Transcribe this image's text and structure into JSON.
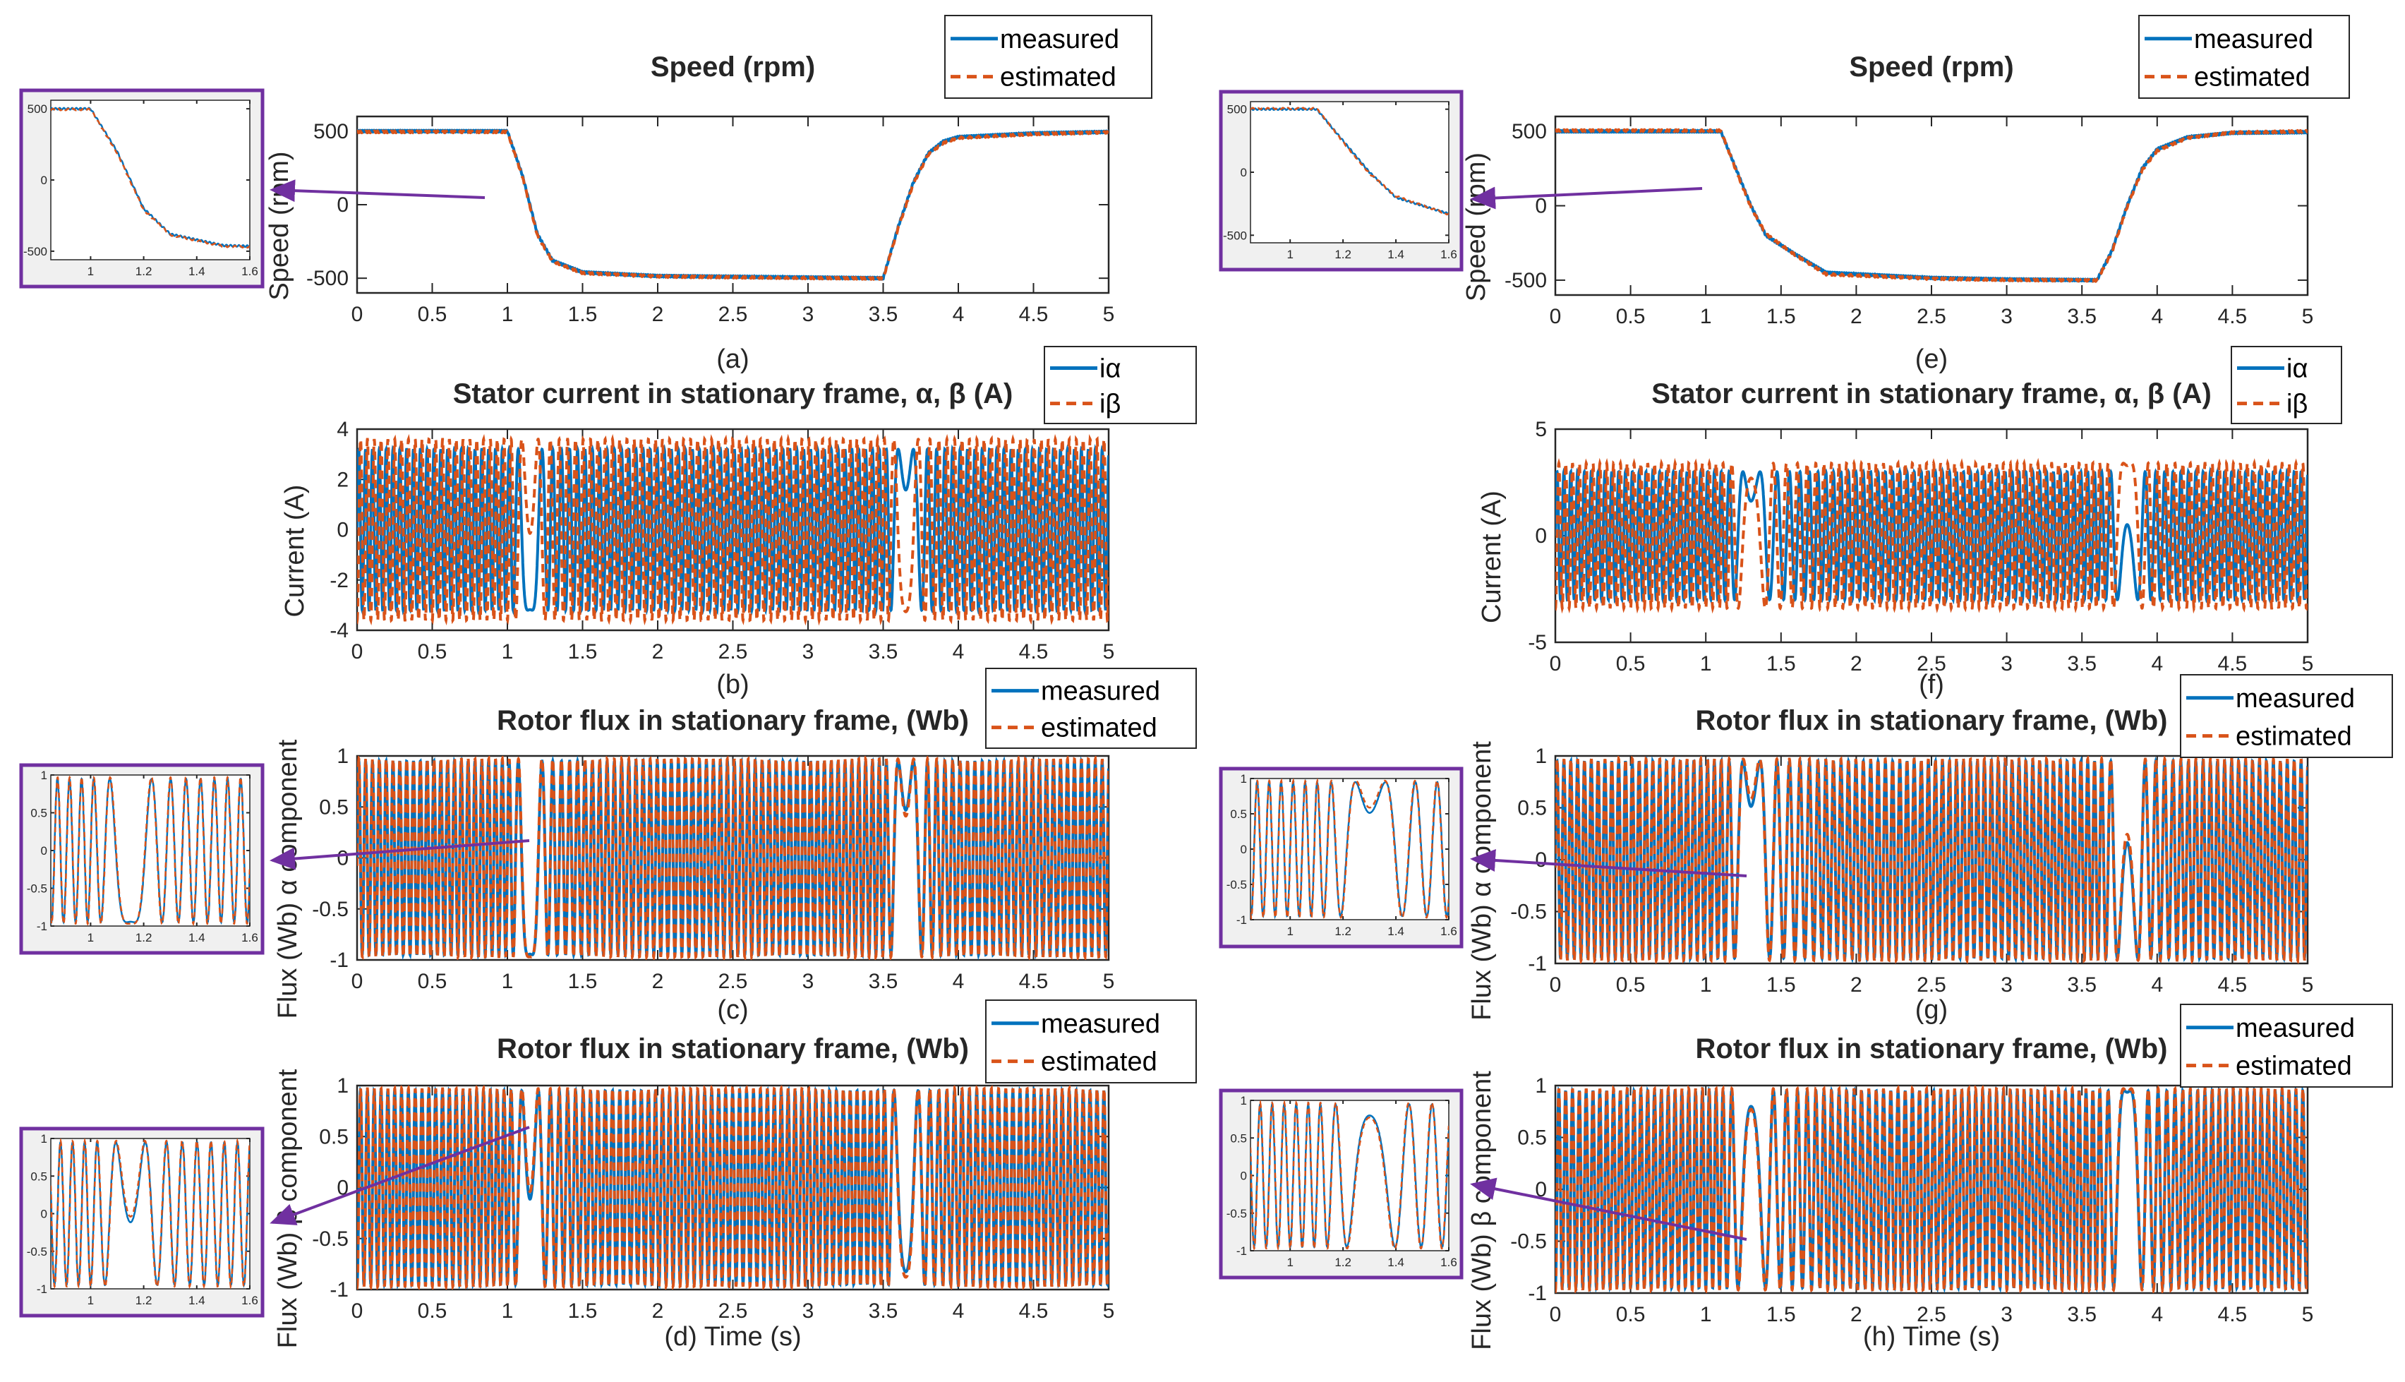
{
  "colors": {
    "measured": "#0072BD",
    "estimated": "#D95319",
    "inset_frame": "#7030A0",
    "arrow": "#7030A0"
  },
  "chart_data": [
    {
      "id": "a",
      "type": "line",
      "title": "Speed (rpm)",
      "ylabel": "Speed (rpm)",
      "caption": "(a)",
      "xlim": [
        0,
        5
      ],
      "ylim": [
        -600,
        600
      ],
      "xticks": [
        "0",
        "0.5",
        "1",
        "1.5",
        "2",
        "2.5",
        "3",
        "3.5",
        "4",
        "4.5",
        "5"
      ],
      "yticks": [
        "-500",
        "0",
        "500"
      ],
      "legend": [
        "measured",
        "estimated"
      ],
      "legend_position": "top-right",
      "series": [
        {
          "name": "measured",
          "x": [
            0,
            1.0,
            1.1,
            1.2,
            1.3,
            1.5,
            2.0,
            3.0,
            3.5,
            3.6,
            3.7,
            3.8,
            3.9,
            4.0,
            4.5,
            5.0
          ],
          "y": [
            500,
            500,
            200,
            -200,
            -380,
            -460,
            -485,
            -495,
            -500,
            -150,
            150,
            350,
            430,
            460,
            485,
            495
          ]
        },
        {
          "name": "estimated",
          "x": [
            0,
            1.0,
            1.1,
            1.2,
            1.3,
            1.5,
            2.0,
            3.0,
            3.5,
            3.6,
            3.7,
            3.8,
            3.9,
            4.0,
            4.5,
            5.0
          ],
          "y": [
            495,
            495,
            190,
            -210,
            -385,
            -465,
            -488,
            -498,
            -502,
            -160,
            140,
            340,
            420,
            455,
            480,
            492
          ]
        }
      ],
      "inset": {
        "xlim": [
          0.85,
          1.6
        ],
        "ylim": [
          -560,
          560
        ],
        "xticks": [
          "1",
          "1.2",
          "1.4",
          "1.6"
        ],
        "yticks": [
          "-500",
          "0",
          "500"
        ]
      }
    },
    {
      "id": "b",
      "type": "line",
      "title": "Stator current in stationary frame, α, β  (A)",
      "ylabel": "Current (A)",
      "caption": "(b)",
      "xlim": [
        0,
        5
      ],
      "ylim": [
        -4,
        4
      ],
      "xticks": [
        "0",
        "0.5",
        "1",
        "1.5",
        "2",
        "2.5",
        "3",
        "3.5",
        "4",
        "4.5",
        "5"
      ],
      "yticks": [
        "-4",
        "-2",
        "0",
        "2",
        "4"
      ],
      "legend": [
        "iα",
        "iβ"
      ],
      "legend_position": "top-right",
      "series": [
        {
          "name": "iα",
          "amplitude": 3.2,
          "electrical_hz_at_500rpm": 22
        },
        {
          "name": "iβ",
          "amplitude": 3.6,
          "electrical_hz_at_500rpm": 22
        }
      ]
    },
    {
      "id": "c",
      "type": "line",
      "title": "Rotor flux in stationary frame,  (Wb)",
      "ylabel": "Flux (Wb) α component",
      "caption": "(c)",
      "xlim": [
        0,
        5
      ],
      "ylim": [
        -1,
        1
      ],
      "xticks": [
        "0",
        "0.5",
        "1",
        "1.5",
        "2",
        "2.5",
        "3",
        "3.5",
        "4",
        "4.5",
        "5"
      ],
      "yticks": [
        "-1",
        "-0.5",
        "0",
        "0.5",
        "1"
      ],
      "legend": [
        "measured",
        "estimated"
      ],
      "legend_position": "top-right",
      "series": [
        {
          "name": "measured",
          "amplitude": 0.95,
          "electrical_hz_at_500rpm": 22
        },
        {
          "name": "estimated",
          "amplitude": 0.97,
          "electrical_hz_at_500rpm": 22
        }
      ],
      "inset": {
        "xlim": [
          0.85,
          1.6
        ],
        "ylim": [
          -1,
          1
        ],
        "xticks": [
          "1",
          "1.2",
          "1.4",
          "1.6"
        ],
        "yticks": [
          "-1",
          "-0.5",
          "0",
          "0.5",
          "1"
        ]
      }
    },
    {
      "id": "d",
      "type": "line",
      "title": "Rotor flux in stationary frame, (Wb)",
      "ylabel": "Flux (Wb) β component",
      "caption": "(d) Time (s)",
      "xlim": [
        0,
        5
      ],
      "ylim": [
        -1,
        1
      ],
      "xticks": [
        "0",
        "0.5",
        "1",
        "1.5",
        "2",
        "2.5",
        "3",
        "3.5",
        "4",
        "4.5",
        "5"
      ],
      "yticks": [
        "-1",
        "-0.5",
        "0",
        "0.5",
        "1"
      ],
      "legend": [
        "measured",
        "estimated"
      ],
      "legend_position": "top-right",
      "series": [
        {
          "name": "measured",
          "amplitude": 0.95,
          "electrical_hz_at_500rpm": 22
        },
        {
          "name": "estimated",
          "amplitude": 0.97,
          "electrical_hz_at_500rpm": 22
        }
      ],
      "inset": {
        "xlim": [
          0.85,
          1.6
        ],
        "ylim": [
          -1,
          1
        ],
        "xticks": [
          "1",
          "1.2",
          "1.4",
          "1.6"
        ],
        "yticks": [
          "-1",
          "-0.5",
          "0",
          "0.5",
          "1"
        ]
      }
    },
    {
      "id": "e",
      "type": "line",
      "title": "Speed (rpm)",
      "ylabel": "Speed (rpm)",
      "caption": "(e)",
      "xlim": [
        0,
        5
      ],
      "ylim": [
        -600,
        600
      ],
      "xticks": [
        "0",
        "0.5",
        "1",
        "1.5",
        "2",
        "2.5",
        "3",
        "3.5",
        "4",
        "4.5",
        "5"
      ],
      "yticks": [
        "-500",
        "0",
        "500"
      ],
      "legend": [
        "measured",
        "estimated"
      ],
      "legend_position": "top-right",
      "series": [
        {
          "name": "measured",
          "x": [
            0,
            1.1,
            1.2,
            1.3,
            1.4,
            1.6,
            1.8,
            2.5,
            3.0,
            3.6,
            3.7,
            3.8,
            3.9,
            4.0,
            4.2,
            4.5,
            5.0
          ],
          "y": [
            500,
            500,
            250,
            0,
            -200,
            -330,
            -450,
            -485,
            -495,
            -500,
            -300,
            0,
            250,
            380,
            460,
            490,
            495
          ]
        },
        {
          "name": "estimated",
          "x": [
            0,
            1.1,
            1.2,
            1.3,
            1.4,
            1.6,
            1.8,
            2.5,
            3.0,
            3.6,
            3.7,
            3.8,
            3.9,
            4.0,
            4.2,
            4.5,
            5.0
          ],
          "y": [
            505,
            505,
            240,
            -10,
            -190,
            -335,
            -460,
            -490,
            -498,
            -502,
            -310,
            -10,
            240,
            370,
            455,
            492,
            500
          ]
        }
      ],
      "inset": {
        "xlim": [
          0.85,
          1.6
        ],
        "ylim": [
          -560,
          560
        ],
        "xticks": [
          "1",
          "1.2",
          "1.4",
          "1.6"
        ],
        "yticks": [
          "-500",
          "0",
          "500"
        ]
      }
    },
    {
      "id": "f",
      "type": "line",
      "title": "Stator current in stationary frame, α, β  (A)",
      "ylabel": "Current (A)",
      "caption": "(f)",
      "xlim": [
        0,
        5
      ],
      "ylim": [
        -5,
        5
      ],
      "xticks": [
        "0",
        "0.5",
        "1",
        "1.5",
        "2",
        "2.5",
        "3",
        "3.5",
        "4",
        "4.5",
        "5"
      ],
      "yticks": [
        "-5",
        "0",
        "5"
      ],
      "legend": [
        "iα",
        "iβ"
      ],
      "legend_position": "top-right",
      "series": [
        {
          "name": "iα",
          "amplitude": 3.0,
          "electrical_hz_at_500rpm": 22
        },
        {
          "name": "iβ",
          "amplitude": 3.4,
          "electrical_hz_at_500rpm": 22
        }
      ]
    },
    {
      "id": "g",
      "type": "line",
      "title": "Rotor flux in stationary frame,  (Wb)",
      "ylabel": "Flux (Wb) α component",
      "caption": "(g)",
      "xlim": [
        0,
        5
      ],
      "ylim": [
        -1,
        1
      ],
      "xticks": [
        "0",
        "0.5",
        "1",
        "1.5",
        "2",
        "2.5",
        "3",
        "3.5",
        "4",
        "4.5",
        "5"
      ],
      "yticks": [
        "-1",
        "-0.5",
        "0",
        "0.5",
        "1"
      ],
      "legend": [
        "measured",
        "estimated"
      ],
      "legend_position": "top-right",
      "series": [
        {
          "name": "measured",
          "amplitude": 0.95,
          "electrical_hz_at_500rpm": 22
        },
        {
          "name": "estimated",
          "amplitude": 0.97,
          "electrical_hz_at_500rpm": 22
        }
      ],
      "inset": {
        "xlim": [
          0.85,
          1.6
        ],
        "ylim": [
          -1,
          1
        ],
        "xticks": [
          "1",
          "1.2",
          "1.4",
          "1.6"
        ],
        "yticks": [
          "-1",
          "-0.5",
          "0",
          "0.5",
          "1"
        ]
      }
    },
    {
      "id": "h",
      "type": "line",
      "title": "Rotor flux in stationary frame, (Wb)",
      "ylabel": "Flux (Wb) β component",
      "caption": "(h) Time (s)",
      "xlim": [
        0,
        5
      ],
      "ylim": [
        -1,
        1
      ],
      "xticks": [
        "0",
        "0.5",
        "1",
        "1.5",
        "2",
        "2.5",
        "3",
        "3.5",
        "4",
        "4.5",
        "5"
      ],
      "yticks": [
        "-1",
        "-0.5",
        "0",
        "0.5",
        "1"
      ],
      "legend": [
        "measured",
        "estimated"
      ],
      "legend_position": "top-right",
      "series": [
        {
          "name": "measured",
          "amplitude": 0.95,
          "electrical_hz_at_500rpm": 22
        },
        {
          "name": "estimated",
          "amplitude": 0.97,
          "electrical_hz_at_500rpm": 22
        }
      ],
      "inset": {
        "xlim": [
          0.85,
          1.6
        ],
        "ylim": [
          -1,
          1
        ],
        "xticks": [
          "1",
          "1.2",
          "1.4",
          "1.6"
        ],
        "yticks": [
          "-1",
          "-0.5",
          "0",
          "0.5",
          "1"
        ]
      }
    }
  ]
}
